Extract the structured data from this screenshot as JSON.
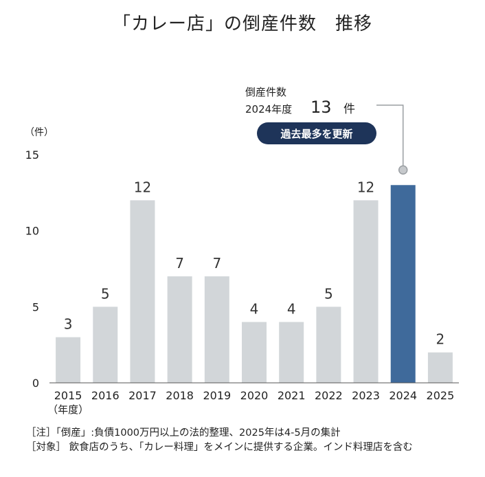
{
  "title": "「カレー店」の倒産件数　推移",
  "chart_data": {
    "type": "bar",
    "ylabel": "（件）",
    "xlabel": "（年度）",
    "ylim": [
      0,
      15
    ],
    "yticks": [
      0,
      5,
      10,
      15
    ],
    "categories": [
      "2015",
      "2016",
      "2017",
      "2018",
      "2019",
      "2020",
      "2021",
      "2022",
      "2023",
      "2024",
      "2025"
    ],
    "values": [
      3,
      5,
      12,
      7,
      7,
      4,
      4,
      5,
      12,
      13,
      2
    ],
    "highlight_index": 9,
    "bar_color": "#d2d6d9",
    "highlight_color": "#3f6a9b",
    "grid": false
  },
  "annotation": {
    "line1": "倒産件数",
    "line2_prefix": "2024年度",
    "value": "13",
    "unit": "件",
    "badge": "過去最多を更新",
    "badge_color": "#1e3459"
  },
  "notes": [
    "［注］「倒産」:負債1000万円以上の法的整理、2025年は4-5月の集計",
    "［対象］ 飲食店のうち、「カレー料理」をメインに提供する企業。インド料理店を含む"
  ]
}
